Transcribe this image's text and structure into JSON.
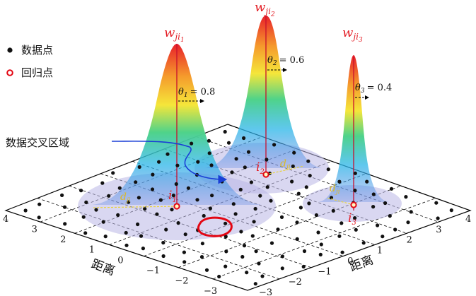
{
  "legend": {
    "data_point": "数据点",
    "regression_point": "回归点"
  },
  "annotation": {
    "overlap_region": "数据交叉区域"
  },
  "kernels": [
    {
      "weight_main": "w",
      "weight_sub": "ji",
      "weight_idx": "1",
      "theta_label": "θ",
      "theta_idx": "1",
      "theta_value": "= 0.8",
      "point_main": "i",
      "point_idx": "1",
      "dist_main": "d",
      "dist_sub": "ji"
    },
    {
      "weight_main": "w",
      "weight_sub": "ji",
      "weight_idx": "2",
      "theta_label": "θ",
      "theta_idx": "2",
      "theta_value": "= 0.6",
      "point_main": "i",
      "point_idx": "2",
      "dist_main": "d",
      "dist_sub": "ji"
    },
    {
      "weight_main": "w",
      "weight_sub": "ji",
      "weight_idx": "3",
      "theta_label": "θ",
      "theta_idx": "3",
      "theta_value": "= 0.4",
      "point_main": "i",
      "point_idx": "3",
      "dist_main": "d",
      "dist_sub": "ji"
    }
  ],
  "axes": {
    "left_label": "距离",
    "right_label": "距离",
    "left_ticks": [
      "4",
      "3",
      "2",
      "1",
      "0",
      "−1",
      "−2",
      "−3"
    ],
    "right_ticks": [
      "−3",
      "−2",
      "−1",
      "0",
      "1",
      "2",
      "3",
      "4"
    ]
  },
  "colors": {
    "grid": "#000000",
    "kernel_high": "#e8202a",
    "kernel_mid": "#f5e63a",
    "kernel_low": "#2f7fd8",
    "circle_fill": "#b9b6e6",
    "regression_point": "#e30613",
    "highlight": "#e30613",
    "arrow": "#1a3fd6"
  }
}
